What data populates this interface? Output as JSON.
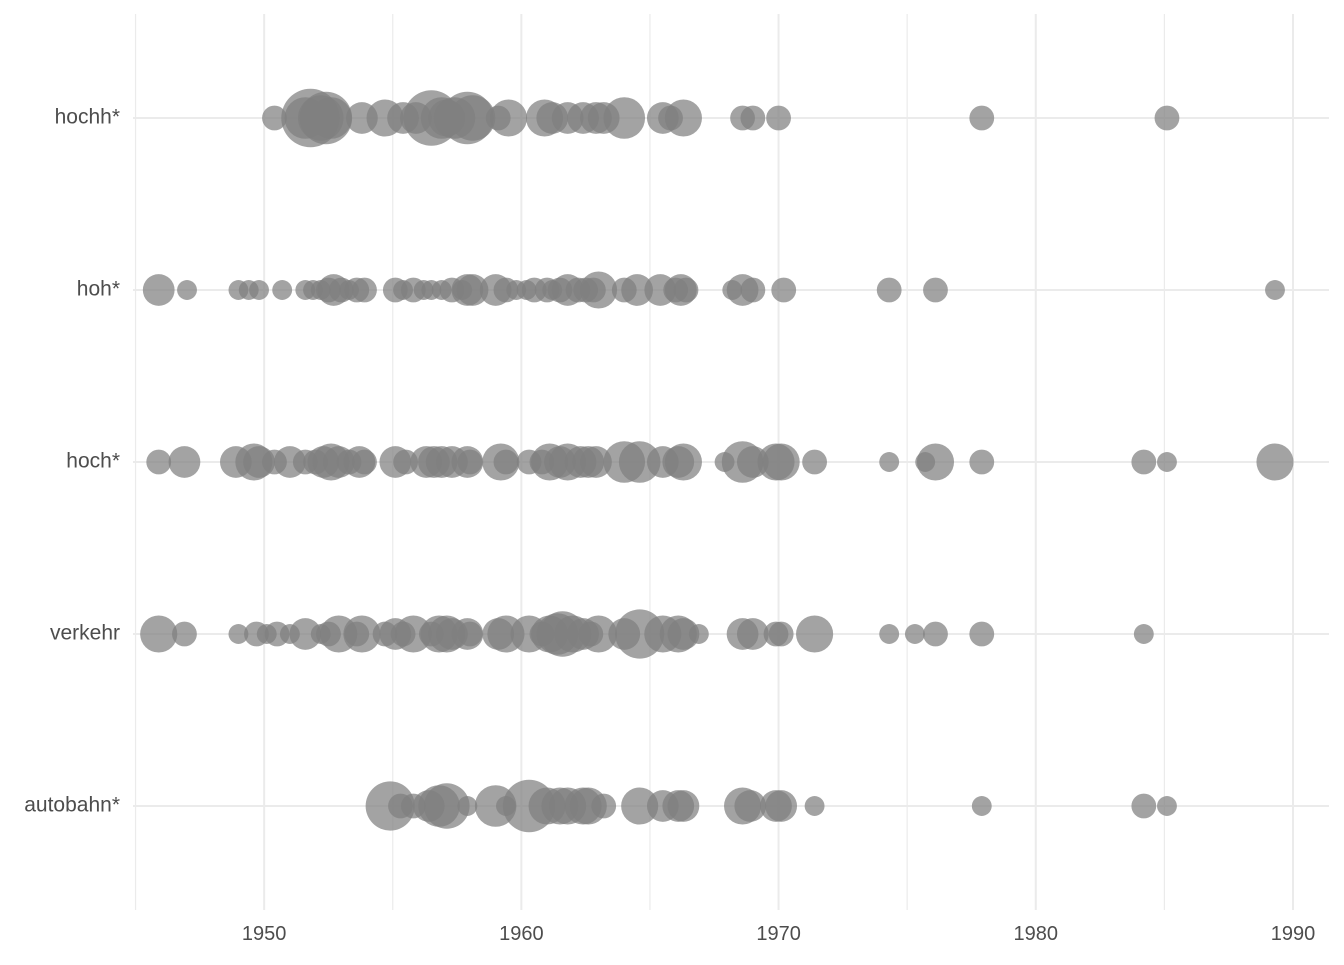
{
  "chart_data": {
    "type": "scatter",
    "title": "",
    "xlabel": "",
    "ylabel": "",
    "xlim": [
      1944.9,
      1991.4
    ],
    "x_ticks": [
      "1950",
      "1960",
      "1970",
      "1980",
      "1990"
    ],
    "x_tick_values": [
      1950,
      1960,
      1970,
      1980,
      1990
    ],
    "x_minor_tick_values": [
      1945,
      1955,
      1965,
      1975,
      1985
    ],
    "categories": [
      "autobahn*",
      "verkehr",
      "hoch*",
      "hoh*",
      "hochh*"
    ],
    "grid": true,
    "legend": "none",
    "point_color": "#808080",
    "grid_color": "#ebebeb",
    "series": [
      {
        "category": "hochh*",
        "points": [
          [
            1950.4,
            1
          ],
          [
            1951.6,
            4
          ],
          [
            1951.8,
            9
          ],
          [
            1952.2,
            5
          ],
          [
            1952.4,
            7
          ],
          [
            1952.6,
            4
          ],
          [
            1953.8,
            2
          ],
          [
            1954.7,
            3
          ],
          [
            1955.4,
            2
          ],
          [
            1955.9,
            2
          ],
          [
            1956.5,
            8
          ],
          [
            1956.9,
            4
          ],
          [
            1957.1,
            3
          ],
          [
            1957.4,
            4
          ],
          [
            1957.9,
            7
          ],
          [
            1958.1,
            5
          ],
          [
            1959.1,
            1
          ],
          [
            1959.5,
            3
          ],
          [
            1960.9,
            3
          ],
          [
            1961.2,
            2
          ],
          [
            1961.8,
            2
          ],
          [
            1962.4,
            2
          ],
          [
            1962.9,
            2
          ],
          [
            1963.2,
            2
          ],
          [
            1964.0,
            4
          ],
          [
            1965.5,
            2
          ],
          [
            1965.8,
            1
          ],
          [
            1966.3,
            3
          ],
          [
            1968.6,
            1
          ],
          [
            1969.0,
            1
          ],
          [
            1970.0,
            1
          ],
          [
            1977.9,
            1
          ],
          [
            1985.1,
            1
          ]
        ]
      },
      {
        "category": "hoh*",
        "points": [
          [
            1945.9,
            2
          ],
          [
            1947.0,
            0.5
          ],
          [
            1949.0,
            0.5
          ],
          [
            1949.4,
            0.5
          ],
          [
            1949.8,
            0.5
          ],
          [
            1950.7,
            0.5
          ],
          [
            1951.6,
            0.5
          ],
          [
            1951.9,
            0.5
          ],
          [
            1952.2,
            0.5
          ],
          [
            1952.5,
            1
          ],
          [
            1952.7,
            2
          ],
          [
            1953.0,
            1
          ],
          [
            1953.3,
            0.5
          ],
          [
            1953.6,
            1
          ],
          [
            1953.9,
            1
          ],
          [
            1955.1,
            1
          ],
          [
            1955.4,
            0.5
          ],
          [
            1955.8,
            1
          ],
          [
            1956.2,
            0.5
          ],
          [
            1956.5,
            0.5
          ],
          [
            1956.9,
            0.5
          ],
          [
            1957.3,
            1
          ],
          [
            1957.7,
            0.5
          ],
          [
            1957.9,
            2
          ],
          [
            1958.1,
            2
          ],
          [
            1959.0,
            2
          ],
          [
            1959.4,
            1
          ],
          [
            1959.8,
            0.5
          ],
          [
            1960.2,
            0.5
          ],
          [
            1960.5,
            1
          ],
          [
            1961.0,
            1
          ],
          [
            1961.2,
            0.5
          ],
          [
            1961.5,
            1
          ],
          [
            1961.8,
            2
          ],
          [
            1962.2,
            1
          ],
          [
            1962.5,
            1
          ],
          [
            1962.8,
            1
          ],
          [
            1963.0,
            3
          ],
          [
            1964.0,
            1
          ],
          [
            1964.5,
            2
          ],
          [
            1965.4,
            2
          ],
          [
            1966.0,
            1
          ],
          [
            1966.2,
            2
          ],
          [
            1966.4,
            1
          ],
          [
            1968.2,
            0.5
          ],
          [
            1968.6,
            2
          ],
          [
            1969.0,
            1
          ],
          [
            1970.2,
            1
          ],
          [
            1974.3,
            1
          ],
          [
            1976.1,
            1
          ],
          [
            1989.3,
            0.5
          ]
        ]
      },
      {
        "category": "hoch*",
        "points": [
          [
            1945.9,
            1
          ],
          [
            1946.9,
            2
          ],
          [
            1948.9,
            2
          ],
          [
            1949.6,
            3
          ],
          [
            1949.8,
            2
          ],
          [
            1950.4,
            1
          ],
          [
            1951.0,
            2
          ],
          [
            1951.6,
            1
          ],
          [
            1952.0,
            1
          ],
          [
            1952.3,
            2
          ],
          [
            1952.6,
            3
          ],
          [
            1952.9,
            2
          ],
          [
            1953.3,
            1
          ],
          [
            1953.7,
            2
          ],
          [
            1953.9,
            1
          ],
          [
            1955.1,
            2
          ],
          [
            1955.5,
            1
          ],
          [
            1956.3,
            2
          ],
          [
            1956.6,
            2
          ],
          [
            1956.9,
            2
          ],
          [
            1957.3,
            2
          ],
          [
            1957.9,
            2
          ],
          [
            1958.0,
            1
          ],
          [
            1959.2,
            3
          ],
          [
            1959.4,
            1
          ],
          [
            1960.3,
            1
          ],
          [
            1960.8,
            1
          ],
          [
            1961.1,
            3
          ],
          [
            1961.5,
            2
          ],
          [
            1961.8,
            3
          ],
          [
            1962.3,
            2
          ],
          [
            1962.6,
            2
          ],
          [
            1962.9,
            2
          ],
          [
            1964.0,
            4
          ],
          [
            1964.6,
            4
          ],
          [
            1965.5,
            2
          ],
          [
            1966.1,
            2
          ],
          [
            1966.3,
            3
          ],
          [
            1967.9,
            0.5
          ],
          [
            1968.6,
            4
          ],
          [
            1969.0,
            2
          ],
          [
            1969.9,
            3
          ],
          [
            1970.1,
            3
          ],
          [
            1971.4,
            1
          ],
          [
            1974.3,
            0.5
          ],
          [
            1975.7,
            0.5
          ],
          [
            1976.1,
            3
          ],
          [
            1977.9,
            1
          ],
          [
            1984.2,
            1
          ],
          [
            1985.1,
            0.5
          ],
          [
            1989.3,
            3
          ]
        ]
      },
      {
        "category": "verkehr",
        "points": [
          [
            1945.9,
            3
          ],
          [
            1946.9,
            1
          ],
          [
            1949.0,
            0.5
          ],
          [
            1949.7,
            1
          ],
          [
            1950.1,
            0.5
          ],
          [
            1950.5,
            1
          ],
          [
            1951.0,
            0.5
          ],
          [
            1951.6,
            2
          ],
          [
            1952.2,
            0.5
          ],
          [
            1952.5,
            1
          ],
          [
            1952.9,
            3
          ],
          [
            1953.6,
            1
          ],
          [
            1953.8,
            3
          ],
          [
            1954.7,
            1
          ],
          [
            1955.1,
            2
          ],
          [
            1955.4,
            1
          ],
          [
            1955.8,
            3
          ],
          [
            1956.5,
            1
          ],
          [
            1956.8,
            3
          ],
          [
            1957.1,
            3
          ],
          [
            1957.3,
            2
          ],
          [
            1957.9,
            2
          ],
          [
            1958.0,
            1
          ],
          [
            1959.1,
            2
          ],
          [
            1959.4,
            3
          ],
          [
            1960.3,
            3
          ],
          [
            1960.8,
            1
          ],
          [
            1961.1,
            3
          ],
          [
            1961.4,
            4
          ],
          [
            1961.6,
            5
          ],
          [
            1962.0,
            3
          ],
          [
            1962.4,
            2
          ],
          [
            1962.7,
            1
          ],
          [
            1963.0,
            3
          ],
          [
            1964.0,
            2
          ],
          [
            1964.6,
            6
          ],
          [
            1965.5,
            3
          ],
          [
            1966.1,
            3
          ],
          [
            1966.3,
            2
          ],
          [
            1966.9,
            0.5
          ],
          [
            1968.6,
            2
          ],
          [
            1969.0,
            2
          ],
          [
            1969.9,
            1
          ],
          [
            1970.1,
            1
          ],
          [
            1971.4,
            3
          ],
          [
            1974.3,
            0.5
          ],
          [
            1975.3,
            0.5
          ],
          [
            1976.1,
            1
          ],
          [
            1977.9,
            1
          ],
          [
            1984.2,
            0.5
          ]
        ]
      },
      {
        "category": "autobahn*",
        "points": [
          [
            1954.9,
            6
          ],
          [
            1955.3,
            1
          ],
          [
            1955.8,
            1
          ],
          [
            1956.4,
            2
          ],
          [
            1956.8,
            4
          ],
          [
            1957.1,
            5
          ],
          [
            1957.9,
            0.5
          ],
          [
            1959.0,
            4
          ],
          [
            1959.4,
            0.5
          ],
          [
            1960.3,
            7
          ],
          [
            1961.0,
            3
          ],
          [
            1961.5,
            3
          ],
          [
            1961.8,
            3
          ],
          [
            1962.4,
            3
          ],
          [
            1962.6,
            3
          ],
          [
            1963.2,
            1
          ],
          [
            1964.6,
            3
          ],
          [
            1965.5,
            2
          ],
          [
            1966.1,
            2
          ],
          [
            1966.3,
            2
          ],
          [
            1968.6,
            3
          ],
          [
            1968.9,
            2
          ],
          [
            1969.9,
            2
          ],
          [
            1970.1,
            2
          ],
          [
            1971.4,
            0.5
          ],
          [
            1977.9,
            0.5
          ],
          [
            1984.2,
            1
          ],
          [
            1985.1,
            0.5
          ]
        ]
      }
    ]
  }
}
